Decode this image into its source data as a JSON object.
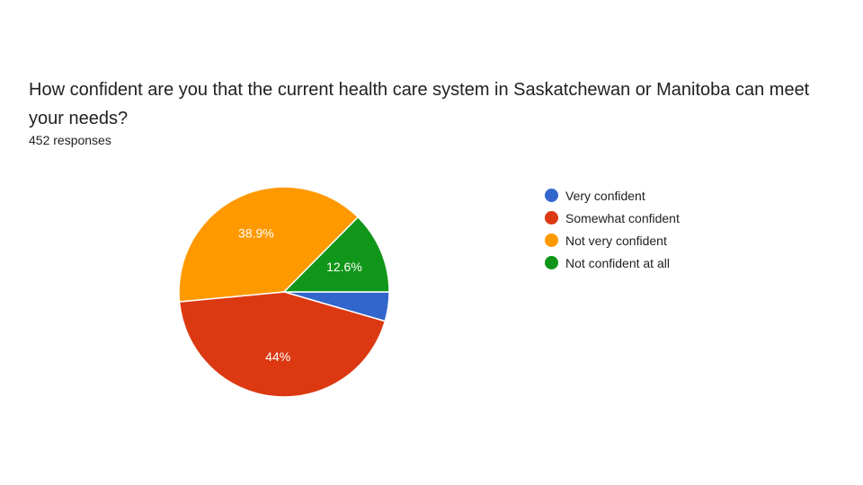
{
  "question": {
    "title": "How confident are you that the current health care system in Saskatchewan or Manitoba can meet your needs?",
    "responses": "452 responses"
  },
  "chart_data": {
    "type": "pie",
    "categories": [
      "Very confident",
      "Somewhat confident",
      "Not very confident",
      "Not confident at all"
    ],
    "values": [
      4.5,
      44.0,
      38.9,
      12.6
    ],
    "labels": [
      "",
      "44%",
      "38.9%",
      "12.6%"
    ],
    "colors": [
      "#3366cc",
      "#dc3912",
      "#ff9900",
      "#109618"
    ],
    "legend_position": "right",
    "title": "How confident are you that the current health care system in Saskatchewan or Manitoba can meet your needs?"
  }
}
